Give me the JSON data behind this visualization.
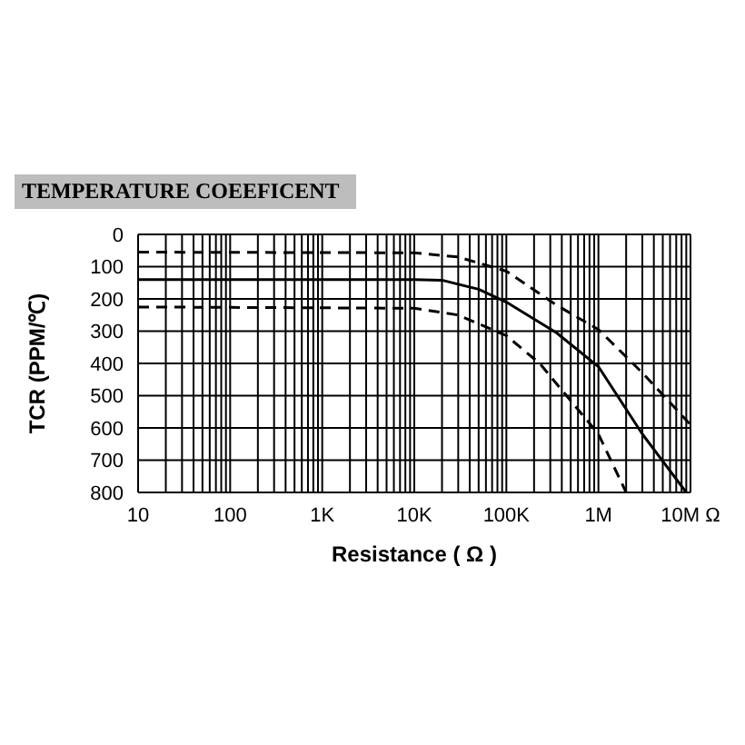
{
  "chart_data": {
    "type": "line",
    "title": "TEMPERATURE COEEFICENT",
    "xlabel": "Resistance ( Ω )",
    "ylabel": "TCR (PPM/℃)",
    "log": "x",
    "grid": true,
    "marker": "none",
    "xlim": [
      10,
      10000000
    ],
    "ylim": [
      800,
      0
    ],
    "xticks": [
      {
        "value": 10,
        "label": "10"
      },
      {
        "value": 20,
        "label": null
      },
      {
        "value": 30,
        "label": null
      },
      {
        "value": 40,
        "label": null
      },
      {
        "value": 50,
        "label": null
      },
      {
        "value": 60,
        "label": null
      },
      {
        "value": 70,
        "label": null
      },
      {
        "value": 80,
        "label": null
      },
      {
        "value": 90,
        "label": null
      },
      {
        "value": 100,
        "label": "100"
      },
      {
        "value": 200,
        "label": null
      },
      {
        "value": 300,
        "label": null
      },
      {
        "value": 400,
        "label": null
      },
      {
        "value": 500,
        "label": null
      },
      {
        "value": 600,
        "label": null
      },
      {
        "value": 700,
        "label": null
      },
      {
        "value": 800,
        "label": null
      },
      {
        "value": 900,
        "label": null
      },
      {
        "value": 1000,
        "label": "1K"
      },
      {
        "value": 2000,
        "label": null
      },
      {
        "value": 3000,
        "label": null
      },
      {
        "value": 4000,
        "label": null
      },
      {
        "value": 5000,
        "label": null
      },
      {
        "value": 6000,
        "label": null
      },
      {
        "value": 7000,
        "label": null
      },
      {
        "value": 8000,
        "label": null
      },
      {
        "value": 9000,
        "label": null
      },
      {
        "value": 10000,
        "label": "10K"
      },
      {
        "value": 20000,
        "label": null
      },
      {
        "value": 30000,
        "label": null
      },
      {
        "value": 40000,
        "label": null
      },
      {
        "value": 50000,
        "label": null
      },
      {
        "value": 60000,
        "label": null
      },
      {
        "value": 70000,
        "label": null
      },
      {
        "value": 80000,
        "label": null
      },
      {
        "value": 90000,
        "label": null
      },
      {
        "value": 100000,
        "label": "100K"
      },
      {
        "value": 200000,
        "label": null
      },
      {
        "value": 300000,
        "label": null
      },
      {
        "value": 400000,
        "label": null
      },
      {
        "value": 500000,
        "label": null
      },
      {
        "value": 600000,
        "label": null
      },
      {
        "value": 700000,
        "label": null
      },
      {
        "value": 800000,
        "label": null
      },
      {
        "value": 900000,
        "label": null
      },
      {
        "value": 1000000,
        "label": "1M"
      },
      {
        "value": 2000000,
        "label": null
      },
      {
        "value": 3000000,
        "label": null
      },
      {
        "value": 4000000,
        "label": null
      },
      {
        "value": 5000000,
        "label": null
      },
      {
        "value": 6000000,
        "label": null
      },
      {
        "value": 7000000,
        "label": null
      },
      {
        "value": 8000000,
        "label": null
      },
      {
        "value": 9000000,
        "label": null
      },
      {
        "value": 10000000,
        "label": "10M Ω"
      }
    ],
    "yticks": [
      0,
      100,
      200,
      300,
      400,
      500,
      600,
      700,
      800
    ],
    "series": [
      {
        "color": "#000000",
        "line_style": "dashed",
        "x": [
          10,
          10000,
          30000,
          100000,
          350000,
          1000000,
          3000000,
          10000000
        ],
        "values": [
          55,
          57,
          70,
          114,
          219,
          295,
          429,
          590
        ]
      },
      {
        "color": "#000000",
        "line_style": "solid",
        "x": [
          10,
          10000,
          20000,
          50000,
          100000,
          350000,
          1000000,
          3000000,
          9000000
        ],
        "values": [
          140,
          140,
          142,
          170,
          210,
          305,
          410,
          619,
          800
        ]
      },
      {
        "color": "#000000",
        "line_style": "dashed",
        "x": [
          10,
          10000,
          30000,
          100000,
          230000,
          1000000,
          2000000
        ],
        "values": [
          225,
          229,
          250,
          314,
          400,
          619,
          800
        ]
      }
    ]
  }
}
